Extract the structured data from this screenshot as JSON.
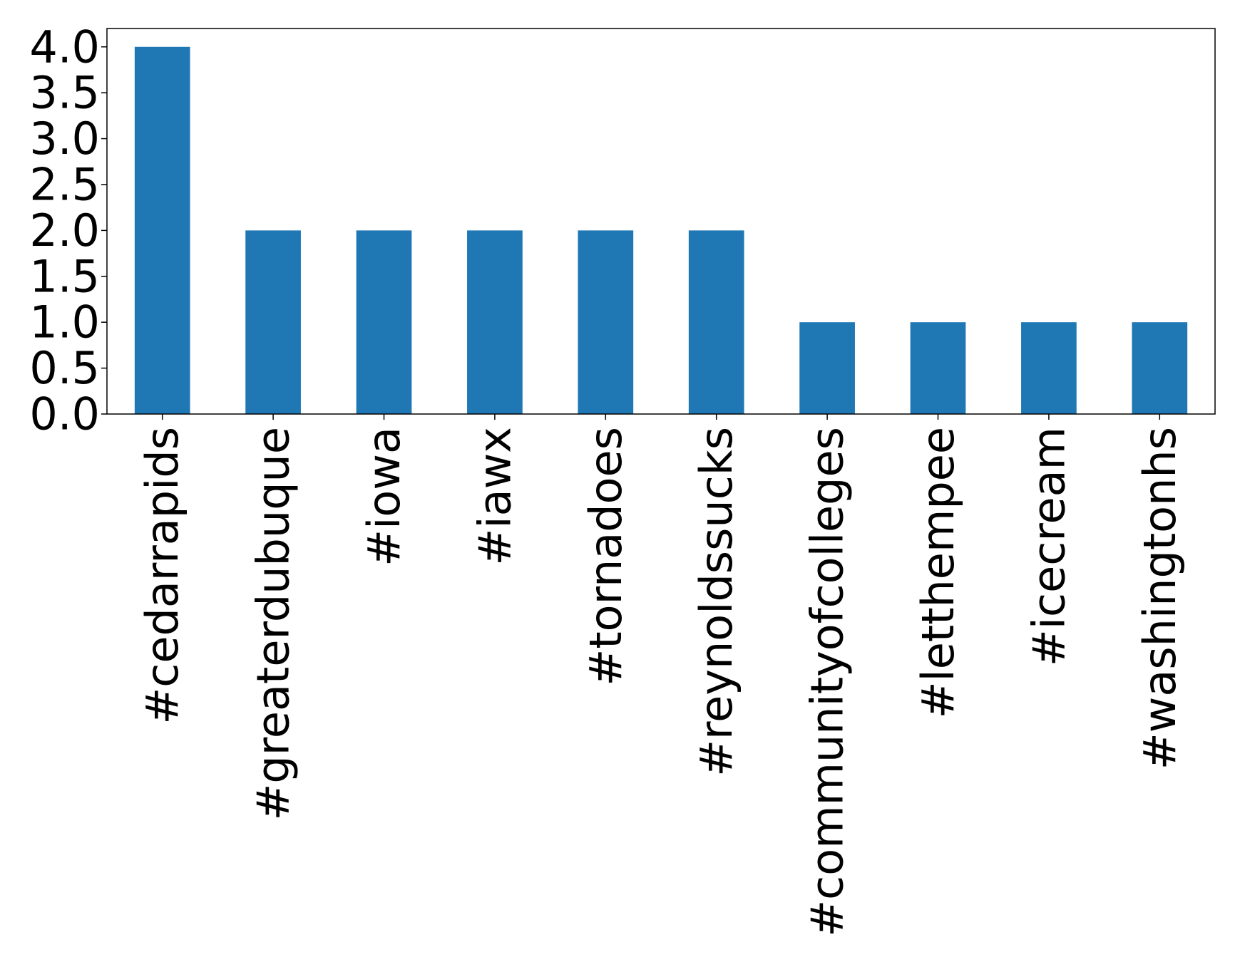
{
  "chart_data": {
    "type": "bar",
    "categories": [
      "#cedarrapids",
      "#greaterdubuque",
      "#iowa",
      "#iawx",
      "#tornadoes",
      "#reynoldssucks",
      "#communityofcolleges",
      "#letthempee",
      "#icecream",
      "#washingtonhs"
    ],
    "values": [
      4,
      2,
      2,
      2,
      2,
      2,
      1,
      1,
      1,
      1
    ],
    "title": "",
    "xlabel": "",
    "ylabel": "",
    "ylim": [
      0,
      4.2
    ],
    "yticks": [
      "0.0",
      "0.5",
      "1.0",
      "1.5",
      "2.0",
      "2.5",
      "3.0",
      "3.5",
      "4.0"
    ],
    "bar_color": "#1f77b4",
    "grid": false,
    "legend": "none"
  }
}
